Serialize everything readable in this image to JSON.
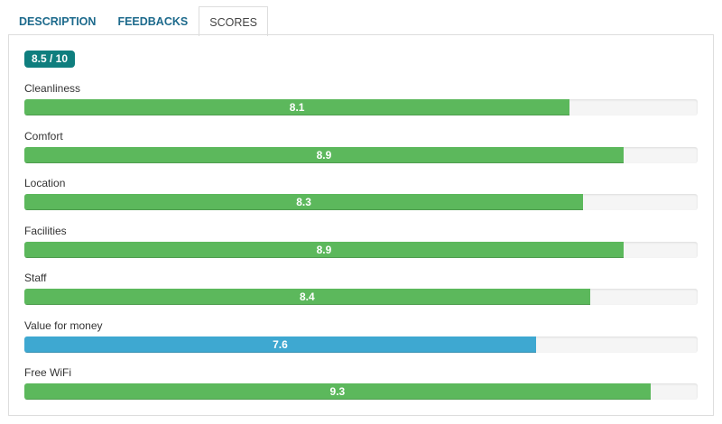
{
  "tabs": [
    "DESCRIPTION",
    "FEEDBACKS",
    "SCORES"
  ],
  "active_tab": 2,
  "overall": "8.5 / 10",
  "scale_max": 10,
  "scores": [
    {
      "label": "Cleanliness",
      "value": 8.1,
      "color": "#5cb85c"
    },
    {
      "label": "Comfort",
      "value": 8.9,
      "color": "#5cb85c"
    },
    {
      "label": "Location",
      "value": 8.3,
      "color": "#5cb85c"
    },
    {
      "label": "Facilities",
      "value": 8.9,
      "color": "#5cb85c"
    },
    {
      "label": "Staff",
      "value": 8.4,
      "color": "#5cb85c"
    },
    {
      "label": "Value for money",
      "value": 7.6,
      "color": "#3ea8d1"
    },
    {
      "label": "Free WiFi",
      "value": 9.3,
      "color": "#5cb85c"
    }
  ]
}
